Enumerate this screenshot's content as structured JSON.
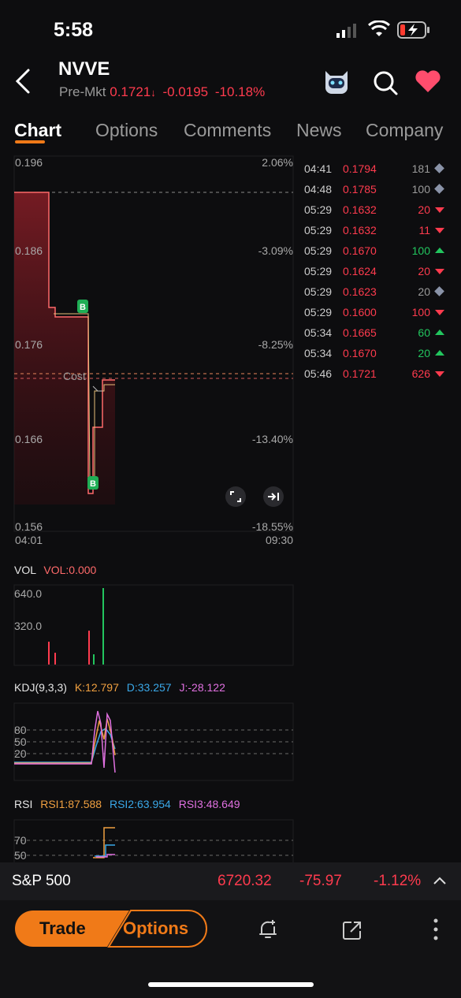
{
  "status": {
    "time": "5:58"
  },
  "header": {
    "symbol": "NVVE",
    "session": "Pre-Mkt",
    "price": "0.1721",
    "change": "-0.0195",
    "change_pct": "-10.18%"
  },
  "tabs": [
    {
      "label": "Chart"
    },
    {
      "label": "Options"
    },
    {
      "label": "Comments"
    },
    {
      "label": "News"
    },
    {
      "label": "Company"
    }
  ],
  "chart": {
    "price_axis": [
      "0.196",
      "0.186",
      "0.176",
      "0.166",
      "0.156"
    ],
    "pct_axis": [
      "2.06%",
      "-3.09%",
      "-8.25%",
      "-13.40%",
      "-18.55%"
    ],
    "time_start": "04:01",
    "time_end": "09:30",
    "cost_label": "Cost",
    "buy_marker": "B"
  },
  "ticks": [
    {
      "time": "04:41",
      "price": "0.1794",
      "vol": "181",
      "dir": "neutral"
    },
    {
      "time": "04:48",
      "price": "0.1785",
      "vol": "100",
      "dir": "neutral"
    },
    {
      "time": "05:29",
      "price": "0.1632",
      "vol": "20",
      "dir": "down"
    },
    {
      "time": "05:29",
      "price": "0.1632",
      "vol": "11",
      "dir": "down"
    },
    {
      "time": "05:29",
      "price": "0.1670",
      "vol": "100",
      "dir": "up"
    },
    {
      "time": "05:29",
      "price": "0.1624",
      "vol": "20",
      "dir": "down"
    },
    {
      "time": "05:29",
      "price": "0.1623",
      "vol": "20",
      "dir": "neutral"
    },
    {
      "time": "05:29",
      "price": "0.1600",
      "vol": "100",
      "dir": "down"
    },
    {
      "time": "05:34",
      "price": "0.1665",
      "vol": "60",
      "dir": "up"
    },
    {
      "time": "05:34",
      "price": "0.1670",
      "vol": "20",
      "dir": "up"
    },
    {
      "time": "05:46",
      "price": "0.1721",
      "vol": "626",
      "dir": "down"
    }
  ],
  "vol": {
    "title": "VOL",
    "value": "VOL:0.000",
    "axis": [
      "640.0",
      "320.0"
    ]
  },
  "kdj": {
    "title": "KDJ(9,3,3)",
    "k": "K:12.797",
    "d": "D:33.257",
    "j": "J:-28.122",
    "axis": [
      "80",
      "50",
      "20"
    ]
  },
  "rsi": {
    "title": "RSI",
    "r1": "RSI1:87.588",
    "r2": "RSI2:63.954",
    "r3": "RSI3:48.649",
    "axis": [
      "70",
      "50"
    ]
  },
  "index_bar": {
    "name": "S&P 500",
    "price": "6720.32",
    "change": "-75.97",
    "pct": "-1.12%"
  },
  "actions": {
    "trade": "Trade",
    "options": "Options"
  },
  "colors": {
    "accent": "#f07a18",
    "down": "#ff3b4e",
    "up": "#22c55e",
    "k": "#f0a040",
    "d": "#3aa8e8",
    "j": "#e070e0"
  }
}
